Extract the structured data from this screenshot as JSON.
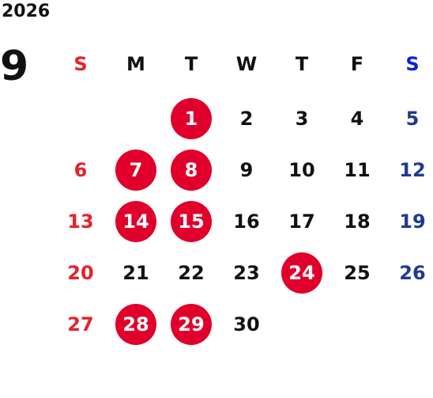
{
  "year": "2026",
  "month": "9",
  "weekdays": [
    "S",
    "M",
    "T",
    "W",
    "T",
    "F",
    "S"
  ],
  "colors": {
    "sunday": "#e5212b",
    "saturday": "#1f3a93",
    "highlight": "#e0002b"
  },
  "days": [
    {
      "label": "1",
      "col": 2,
      "row": 0,
      "highlight": true
    },
    {
      "label": "2",
      "col": 3,
      "row": 0
    },
    {
      "label": "3",
      "col": 4,
      "row": 0
    },
    {
      "label": "4",
      "col": 5,
      "row": 0
    },
    {
      "label": "5",
      "col": 6,
      "row": 0
    },
    {
      "label": "6",
      "col": 0,
      "row": 1
    },
    {
      "label": "7",
      "col": 1,
      "row": 1,
      "highlight": true
    },
    {
      "label": "8",
      "col": 2,
      "row": 1,
      "highlight": true
    },
    {
      "label": "9",
      "col": 3,
      "row": 1
    },
    {
      "label": "10",
      "col": 4,
      "row": 1
    },
    {
      "label": "11",
      "col": 5,
      "row": 1
    },
    {
      "label": "12",
      "col": 6,
      "row": 1
    },
    {
      "label": "13",
      "col": 0,
      "row": 2
    },
    {
      "label": "14",
      "col": 1,
      "row": 2,
      "highlight": true
    },
    {
      "label": "15",
      "col": 2,
      "row": 2,
      "highlight": true
    },
    {
      "label": "16",
      "col": 3,
      "row": 2
    },
    {
      "label": "17",
      "col": 4,
      "row": 2
    },
    {
      "label": "18",
      "col": 5,
      "row": 2
    },
    {
      "label": "19",
      "col": 6,
      "row": 2
    },
    {
      "label": "20",
      "col": 0,
      "row": 3
    },
    {
      "label": "21",
      "col": 1,
      "row": 3
    },
    {
      "label": "22",
      "col": 2,
      "row": 3
    },
    {
      "label": "23",
      "col": 3,
      "row": 3
    },
    {
      "label": "24",
      "col": 4,
      "row": 3,
      "highlight": true
    },
    {
      "label": "25",
      "col": 5,
      "row": 3
    },
    {
      "label": "26",
      "col": 6,
      "row": 3
    },
    {
      "label": "27",
      "col": 0,
      "row": 4
    },
    {
      "label": "28",
      "col": 1,
      "row": 4,
      "highlight": true
    },
    {
      "label": "29",
      "col": 2,
      "row": 4,
      "highlight": true
    },
    {
      "label": "30",
      "col": 3,
      "row": 4
    }
  ]
}
